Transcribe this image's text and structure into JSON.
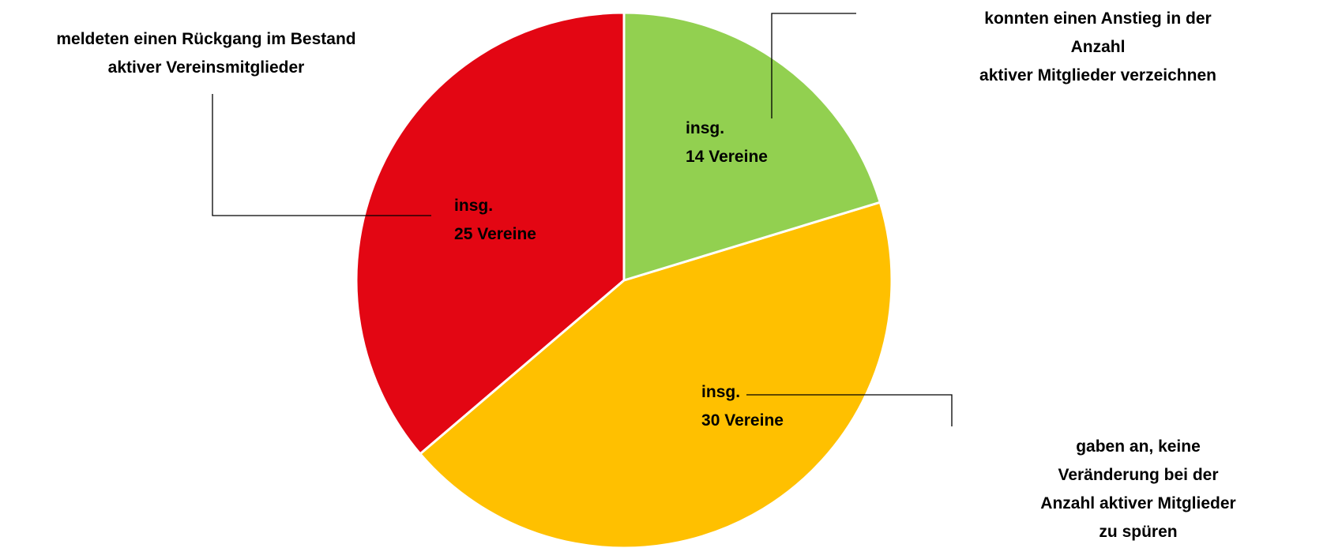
{
  "chart_data": {
    "type": "pie",
    "categories": [
      "konnten einen Anstieg in der Anzahl\naktiver Mitglieder verzeichnen",
      "gaben an, keine Veränderung bei der\nAnzahl aktiver Mitglieder zu spüren",
      "meldeten einen Rückgang im Bestand\naktiver Vereinsmitglieder"
    ],
    "values": [
      14,
      30,
      25
    ],
    "value_labels": [
      "insg.\n14 Vereine",
      "insg.\n30 Vereine",
      "insg.\n25 Vereine"
    ],
    "colors": [
      "#92d050",
      "#ffc000",
      "#e30613"
    ]
  }
}
